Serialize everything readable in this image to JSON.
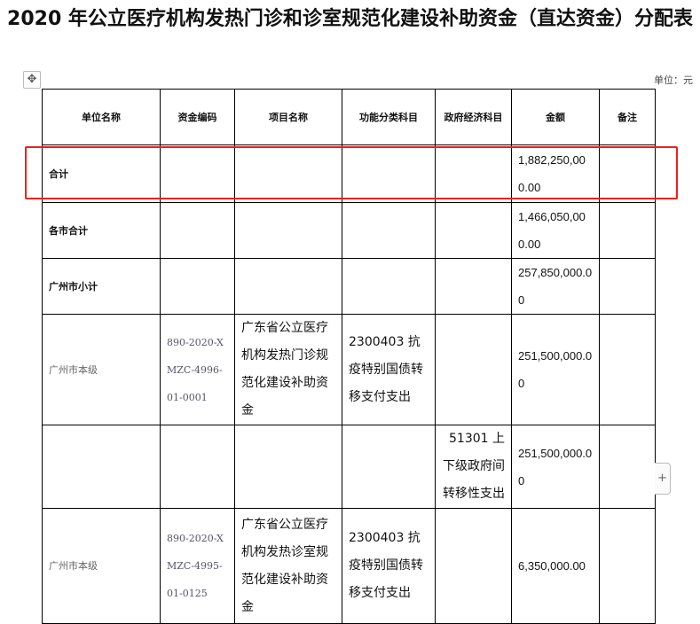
{
  "title": "2020 年公立医疗机构发热门诊和诊室规范化建设补助资金（直达资金）分配表",
  "unit": "单位：元",
  "columns": [
    "单位名称",
    "资金编码",
    "项目名称",
    "功能分类科目",
    "政府经济科目",
    "金额",
    "备注"
  ],
  "rows": [
    {
      "unit": "合计",
      "code": "",
      "project": "",
      "func": "",
      "econ": "",
      "amount": "1,882,250,000.00",
      "note": ""
    },
    {
      "unit": "各市合计",
      "code": "",
      "project": "",
      "func": "",
      "econ": "",
      "amount": "1,466,050,000.00",
      "note": ""
    },
    {
      "unit": "广州市小计",
      "code": "",
      "project": "",
      "func": "",
      "econ": "",
      "amount": "257,850,000.00",
      "note": ""
    },
    {
      "unit": "广州市本级",
      "code": "890-2020-XMZC-4996-01-0001",
      "project": "广东省公立医疗机构发热门诊规范化建设补助资金",
      "func": "2300403 抗疫特别国债转移支付支出",
      "econ": "",
      "amount": "251,500,000.00",
      "note": ""
    },
    {
      "unit": "",
      "code": "",
      "project": "",
      "func": "",
      "econ": "51301 上下级政府间转移性支出",
      "amount": "251,500,000.00",
      "note": ""
    },
    {
      "unit": "广州市本级",
      "code": "890-2020-XMZC-4995-01-0125",
      "project": "广东省公立医疗机构发热诊室规范化建设补助资金",
      "func": "2300403 抗疫特别国债转移支付支出",
      "econ": "",
      "amount": "6,350,000.00",
      "note": ""
    }
  ],
  "highlight_color": "#e8231c"
}
